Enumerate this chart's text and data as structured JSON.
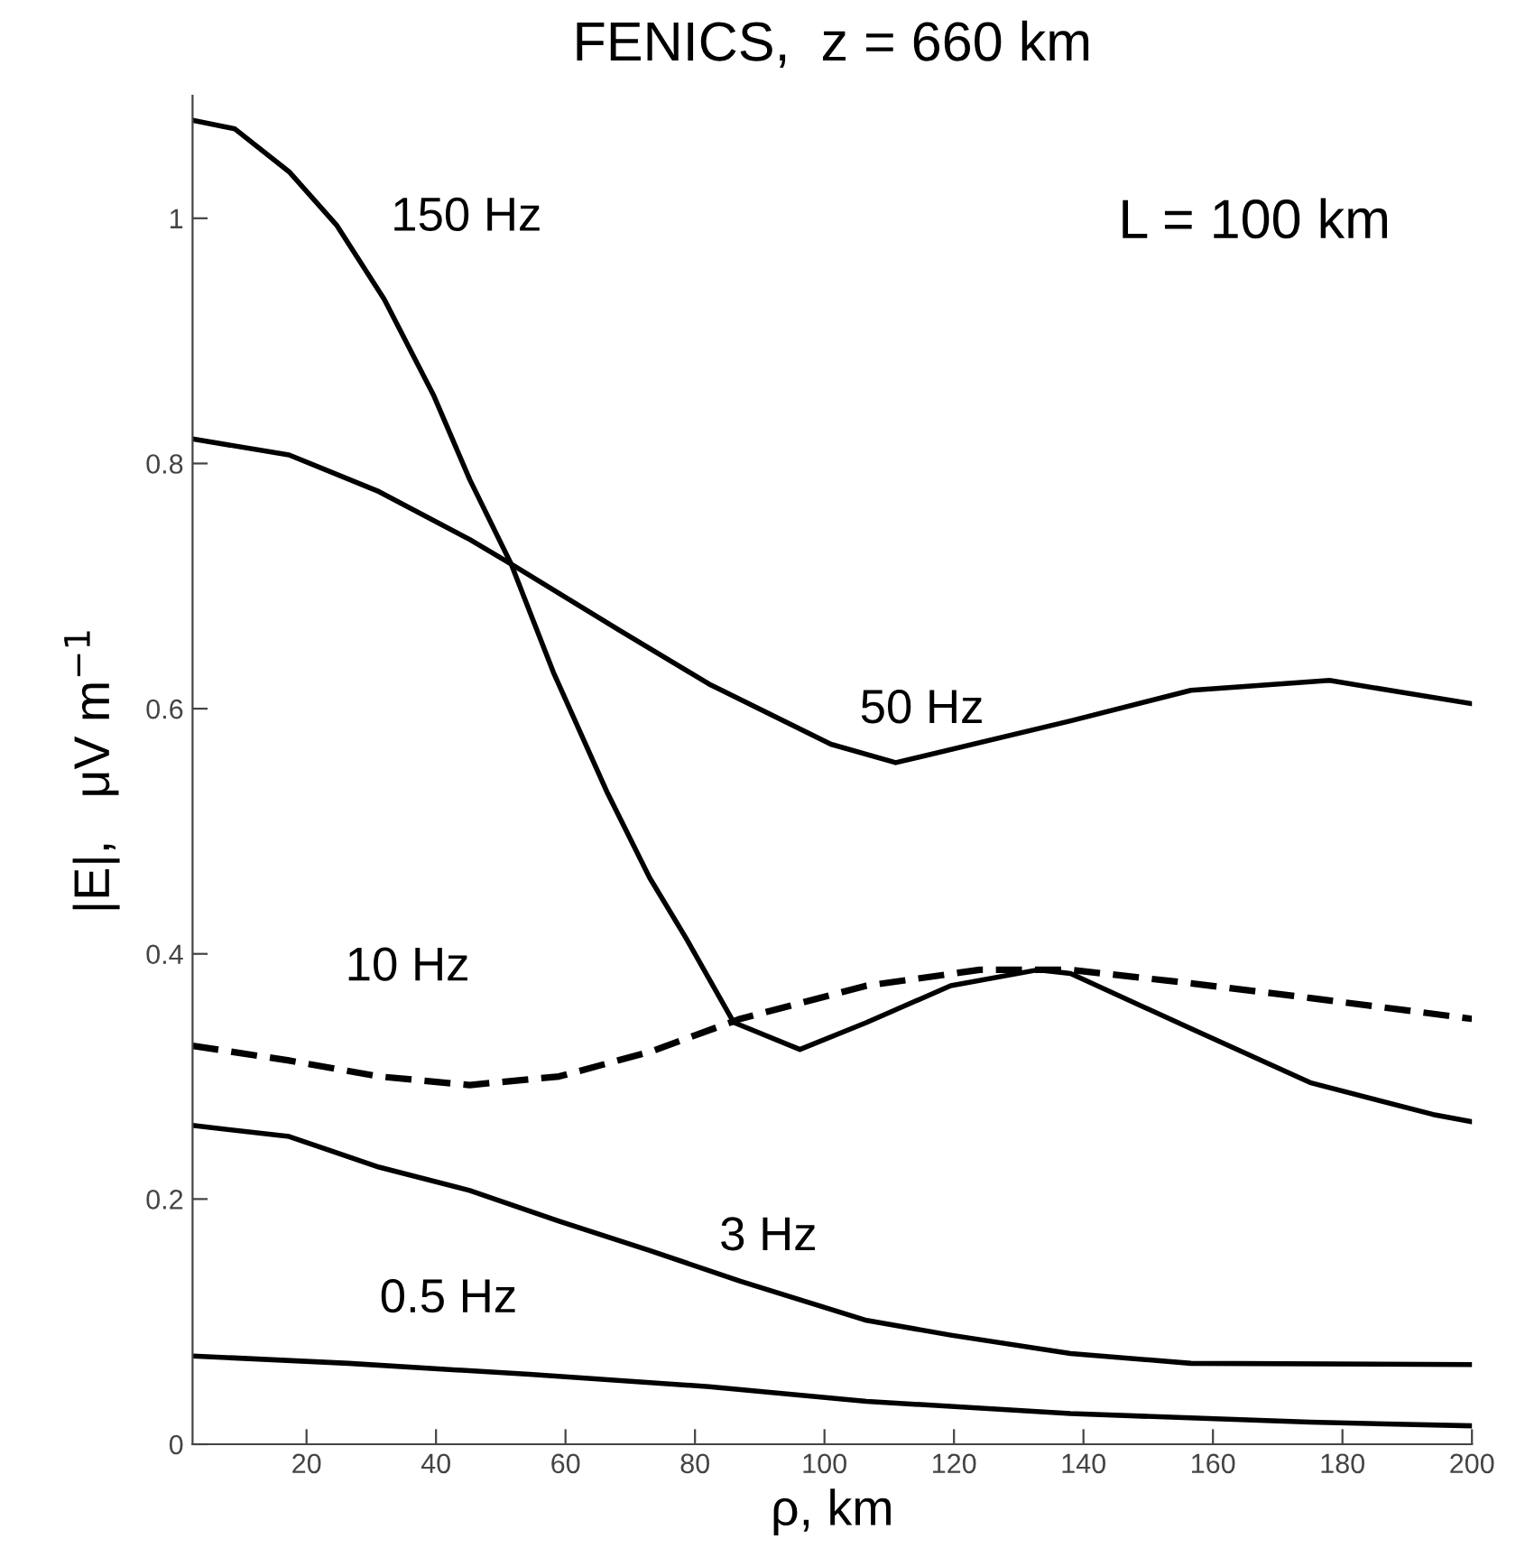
{
  "chart_data": {
    "type": "line",
    "title": "FENICS,  z = 660 km",
    "xlabel": "ρ, km",
    "ylabel": "|E|,   μV m$^{−1}$",
    "xlim": [
      2.4,
      200
    ],
    "ylim": [
      0,
      1.1
    ],
    "xticks": [
      20,
      40,
      60,
      80,
      100,
      120,
      140,
      160,
      180,
      200
    ],
    "yticks": [
      0,
      0.2,
      0.4,
      0.6,
      0.8,
      1
    ],
    "grid": false,
    "series": [
      {
        "name": "150 Hz",
        "color": "#000000",
        "line_style": "solid",
        "x": [
          2.4,
          8.9,
          17.3,
          24.7,
          32,
          39.6,
          45.2,
          51.6,
          58.1,
          66.5,
          73,
          78.6,
          86,
          96.2,
          106.5,
          119.5,
          133,
          138,
          156.6,
          175,
          194,
          200
        ],
        "values": [
          1.08,
          1.073,
          1.038,
          0.994,
          0.934,
          0.856,
          0.787,
          0.718,
          0.63,
          0.531,
          0.462,
          0.413,
          0.344,
          0.322,
          0.344,
          0.374,
          0.387,
          0.384,
          0.339,
          0.295,
          0.269,
          0.263
        ]
      },
      {
        "name": "50 Hz",
        "color": "#000000",
        "line_style": "solid",
        "x": [
          2.4,
          17.3,
          31.2,
          45.2,
          51.6,
          68.3,
          82.2,
          101,
          111,
          138,
          156.6,
          178,
          200
        ],
        "values": [
          0.82,
          0.807,
          0.777,
          0.738,
          0.718,
          0.664,
          0.62,
          0.571,
          0.556,
          0.59,
          0.615,
          0.623,
          0.604
        ]
      },
      {
        "name": "10 Hz",
        "color": "#000000",
        "line_style": "dashed",
        "x": [
          2.4,
          17.3,
          31.2,
          45.2,
          59,
          73,
          87,
          106.5,
          124,
          138,
          156.6,
          175,
          200
        ],
        "values": [
          0.325,
          0.313,
          0.3,
          0.293,
          0.3,
          0.32,
          0.347,
          0.374,
          0.387,
          0.387,
          0.376,
          0.364,
          0.347
        ]
      },
      {
        "name": "3 Hz",
        "color": "#000000",
        "line_style": "solid",
        "x": [
          2.4,
          17.3,
          31.2,
          45.2,
          59,
          73,
          87,
          106.5,
          119.5,
          138,
          156.6,
          200
        ],
        "values": [
          0.26,
          0.251,
          0.226,
          0.207,
          0.182,
          0.158,
          0.133,
          0.101,
          0.089,
          0.074,
          0.066,
          0.065
        ]
      },
      {
        "name": "0.5 Hz",
        "color": "#000000",
        "line_style": "solid",
        "x": [
          2.4,
          26.5,
          54.4,
          82.2,
          106.5,
          138,
          175,
          200
        ],
        "values": [
          0.072,
          0.066,
          0.057,
          0.047,
          0.035,
          0.025,
          0.018,
          0.015
        ]
      }
    ],
    "annotations": [
      "L = 100 km"
    ]
  }
}
